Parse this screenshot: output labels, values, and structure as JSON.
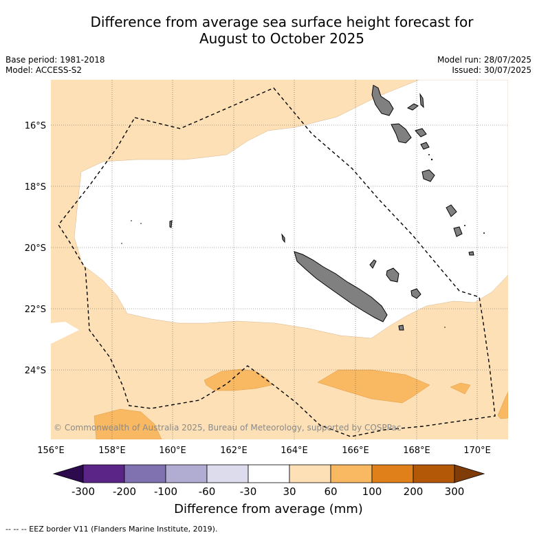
{
  "header": {
    "title_line1": "Difference from average sea surface height forecast for",
    "title_line2": "August to October 2025",
    "base_period": "Base period: 1981-2018",
    "model": "Model: ACCESS-S2",
    "model_run": "Model run: 28/07/2025",
    "issued": "Issued: 30/07/2025"
  },
  "map": {
    "lat_labels": [
      "16°S",
      "18°S",
      "20°S",
      "22°S",
      "24°S"
    ],
    "lon_labels": [
      "156°E",
      "158°E",
      "160°E",
      "162°E",
      "164°E",
      "166°E",
      "168°E",
      "170°E"
    ],
    "copyright": "© Commonwealth of Australia 2025, Bureau of Meteorology, supported by COSPPac",
    "colors": {
      "land": "#808080",
      "band_30_60": "#fde0b6",
      "band_60_100": "#f9b862",
      "eez_line": "#000000"
    }
  },
  "colorbar": {
    "ticks": [
      "-300",
      "-200",
      "-100",
      "-60",
      "-30",
      "30",
      "60",
      "100",
      "200",
      "300"
    ],
    "colors": [
      "#2d0a4e",
      "#5b2588",
      "#8072b0",
      "#b1acd2",
      "#dcdcec",
      "#ffffff",
      "#fde0b6",
      "#f9b862",
      "#e0801b",
      "#b35806",
      "#7f3b08"
    ],
    "title": "Difference from average (mm)"
  },
  "footer": {
    "legend": "-- -- -- EEZ border V11 (Flanders Marine Institute, 2019)."
  }
}
